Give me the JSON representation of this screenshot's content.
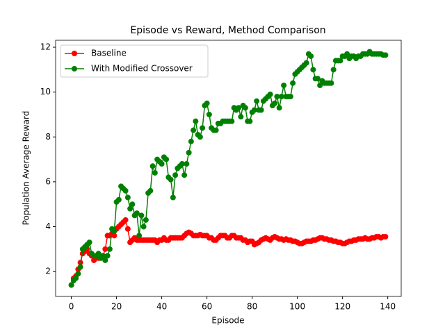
{
  "chart_data": {
    "type": "line",
    "title": "Episode vs Reward, Method Comparison",
    "x_label": "Episode",
    "y_label": "Population Average Reward",
    "x": [
      0,
      1,
      2,
      3,
      4,
      5,
      6,
      7,
      8,
      9,
      10,
      11,
      12,
      13,
      14,
      15,
      16,
      17,
      18,
      19,
      20,
      21,
      22,
      23,
      24,
      25,
      26,
      27,
      28,
      29,
      30,
      31,
      32,
      33,
      34,
      35,
      36,
      37,
      38,
      39,
      40,
      41,
      42,
      43,
      44,
      45,
      46,
      47,
      48,
      49,
      50,
      51,
      52,
      53,
      54,
      55,
      56,
      57,
      58,
      59,
      60,
      61,
      62,
      63,
      64,
      65,
      66,
      67,
      68,
      69,
      70,
      71,
      72,
      73,
      74,
      75,
      76,
      77,
      78,
      79,
      80,
      81,
      82,
      83,
      84,
      85,
      86,
      87,
      88,
      89,
      90,
      91,
      92,
      93,
      94,
      95,
      96,
      97,
      98,
      99,
      100,
      101,
      102,
      103,
      104,
      105,
      106,
      107,
      108,
      109,
      110,
      111,
      112,
      113,
      114,
      115,
      116,
      117,
      118,
      119,
      120,
      121,
      122,
      123,
      124,
      125,
      126,
      127,
      128,
      129,
      130,
      131,
      132,
      133,
      134,
      135,
      136,
      137,
      138,
      139
    ],
    "series": [
      {
        "name": "Baseline",
        "color": "#ff0000",
        "values": [
          1.4,
          1.7,
          1.8,
          2.1,
          2.4,
          2.8,
          2.9,
          3.0,
          2.8,
          2.7,
          2.5,
          2.6,
          2.6,
          2.6,
          2.7,
          3.0,
          3.6,
          3.6,
          3.7,
          3.6,
          3.9,
          4.0,
          4.1,
          4.2,
          4.3,
          3.9,
          3.3,
          3.4,
          3.5,
          3.4,
          3.4,
          3.4,
          3.4,
          3.4,
          3.4,
          3.4,
          3.4,
          3.4,
          3.3,
          3.4,
          3.4,
          3.5,
          3.4,
          3.4,
          3.5,
          3.5,
          3.5,
          3.5,
          3.5,
          3.5,
          3.6,
          3.7,
          3.75,
          3.7,
          3.6,
          3.6,
          3.6,
          3.65,
          3.6,
          3.6,
          3.6,
          3.5,
          3.5,
          3.4,
          3.4,
          3.5,
          3.6,
          3.6,
          3.6,
          3.5,
          3.5,
          3.6,
          3.6,
          3.5,
          3.5,
          3.5,
          3.4,
          3.4,
          3.3,
          3.35,
          3.35,
          3.2,
          3.25,
          3.3,
          3.4,
          3.45,
          3.5,
          3.45,
          3.4,
          3.5,
          3.55,
          3.5,
          3.45,
          3.45,
          3.4,
          3.45,
          3.4,
          3.4,
          3.35,
          3.35,
          3.3,
          3.25,
          3.25,
          3.3,
          3.35,
          3.35,
          3.35,
          3.4,
          3.4,
          3.45,
          3.5,
          3.5,
          3.45,
          3.45,
          3.4,
          3.4,
          3.35,
          3.35,
          3.3,
          3.3,
          3.25,
          3.25,
          3.3,
          3.35,
          3.35,
          3.4,
          3.4,
          3.45,
          3.45,
          3.45,
          3.5,
          3.45,
          3.45,
          3.5,
          3.5,
          3.55,
          3.55,
          3.5,
          3.55,
          3.55
        ]
      },
      {
        "name": "With Modified Crossover",
        "color": "#008000",
        "values": [
          1.4,
          1.6,
          1.7,
          1.9,
          2.2,
          3.0,
          3.1,
          3.2,
          3.3,
          2.8,
          2.7,
          2.7,
          2.8,
          2.6,
          2.7,
          2.5,
          2.7,
          3.0,
          3.9,
          3.8,
          5.1,
          5.2,
          5.8,
          5.7,
          5.6,
          5.3,
          4.8,
          5.0,
          4.5,
          4.6,
          3.6,
          4.5,
          4.0,
          4.3,
          5.5,
          5.6,
          6.7,
          6.4,
          7.0,
          6.9,
          6.8,
          7.1,
          7.0,
          6.2,
          6.1,
          5.3,
          6.3,
          6.6,
          6.7,
          6.8,
          6.3,
          6.8,
          7.3,
          7.8,
          8.3,
          8.7,
          8.1,
          8.0,
          8.4,
          9.4,
          9.5,
          9.0,
          8.4,
          8.3,
          8.3,
          8.6,
          8.6,
          8.7,
          8.7,
          8.7,
          8.7,
          8.7,
          9.3,
          9.2,
          9.3,
          8.9,
          9.4,
          9.3,
          8.7,
          8.7,
          9.1,
          9.2,
          9.6,
          9.2,
          9.2,
          9.6,
          9.7,
          9.8,
          9.9,
          9.4,
          9.5,
          9.8,
          9.3,
          9.8,
          10.3,
          9.8,
          9.8,
          9.8,
          10.4,
          10.8,
          10.9,
          11.0,
          11.1,
          11.2,
          11.3,
          11.7,
          11.6,
          11.0,
          10.6,
          10.6,
          10.3,
          10.5,
          10.4,
          10.4,
          10.4,
          10.4,
          11.0,
          11.4,
          11.4,
          11.4,
          11.6,
          11.6,
          11.7,
          11.5,
          11.6,
          11.6,
          11.5,
          11.6,
          11.6,
          11.7,
          11.7,
          11.7,
          11.8,
          11.7,
          11.7,
          11.7,
          11.7,
          11.7,
          11.65,
          11.65
        ]
      }
    ],
    "xlim": [
      -6.95,
      145.95
    ],
    "ylim": [
      0.89,
      12.31
    ],
    "xticks": [
      0,
      20,
      40,
      60,
      80,
      100,
      120,
      140
    ],
    "yticks": [
      2,
      4,
      6,
      8,
      10,
      12
    ],
    "legend": "upper left"
  }
}
